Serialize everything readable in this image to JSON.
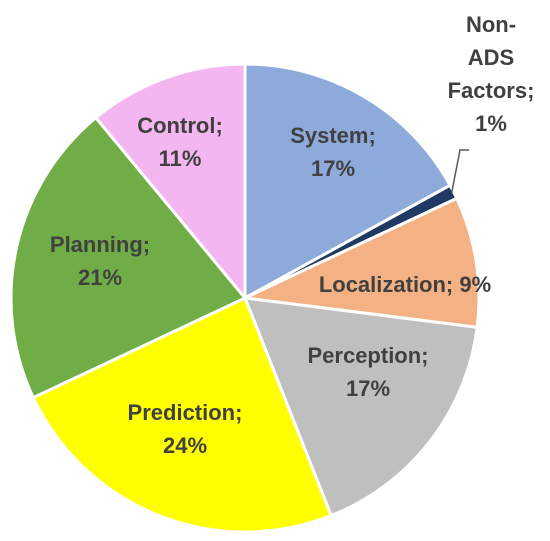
{
  "chart_data": {
    "type": "pie",
    "title": "",
    "slices": [
      {
        "name": "System",
        "value": 17,
        "label_lines": [
          "System;",
          "17%"
        ],
        "color": "#8eaadb"
      },
      {
        "name": "Non-ADS Factors",
        "value": 1,
        "label_lines": [
          "Non-",
          "ADS",
          "Factors;",
          "1%"
        ],
        "color": "#1f3864"
      },
      {
        "name": "Localization",
        "value": 9,
        "label_lines": [
          "Localization; 9%"
        ],
        "color": "#f4b183"
      },
      {
        "name": "Perception",
        "value": 17,
        "label_lines": [
          "Perception;",
          "17%"
        ],
        "color": "#bfbfbf"
      },
      {
        "name": "Prediction",
        "value": 24,
        "label_lines": [
          "Prediction;",
          "24%"
        ],
        "color": "#ffff00"
      },
      {
        "name": "Planning",
        "value": 21,
        "label_lines": [
          "Planning;",
          "21%"
        ],
        "color": "#70ad47"
      },
      {
        "name": "Control",
        "value": 11,
        "label_lines": [
          "Control;",
          "11%"
        ],
        "color": "#f4b6f0"
      }
    ],
    "legend": "none",
    "data_labels": "category; percent"
  }
}
